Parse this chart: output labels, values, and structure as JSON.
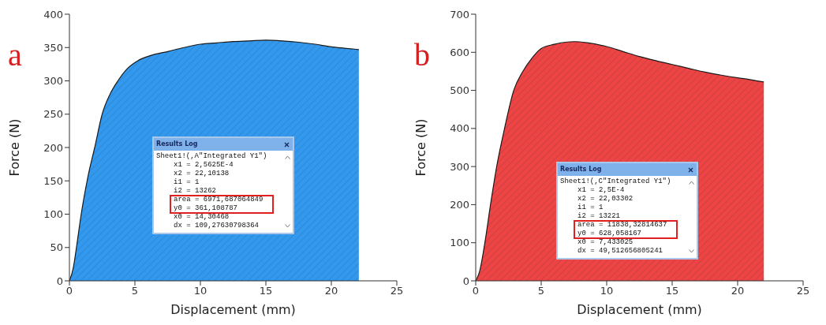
{
  "chart_data": [
    {
      "type": "area",
      "title": "a",
      "xlabel": "Displacement (mm)",
      "ylabel": "Force (N)",
      "xlim": [
        0,
        25
      ],
      "xticks": [
        0,
        5,
        10,
        15,
        20,
        25
      ],
      "ylim": [
        0,
        400
      ],
      "yticks": [
        0,
        50,
        100,
        150,
        200,
        250,
        300,
        350,
        400
      ],
      "grid": false,
      "legend": false,
      "x": [
        0,
        0.3,
        0.5,
        0.9,
        1.4,
        1.93,
        2.5,
        3.1,
        3.7,
        4.4,
        5.2,
        6.2,
        7.5,
        8.75,
        10,
        11.25,
        12.5,
        13.75,
        15,
        16.25,
        17.5,
        18.75,
        20,
        21,
        22.1
      ],
      "series": [
        {
          "color": "#3399ee",
          "values": [
            0,
            20,
            45,
            100,
            155,
            200,
            250,
            280,
            300,
            318,
            330,
            338,
            344,
            350,
            355,
            357,
            359,
            360,
            361,
            360,
            358,
            355,
            351,
            349,
            347
          ]
        }
      ],
      "annotations": [
        "Results Log",
        "Sheet1!(,A\"Integrated Y1\")",
        "x1 = 2,5625E-4",
        "x2 = 22,10138",
        "i1 = 1",
        "i2 = 13262",
        "area = 6971,687064849",
        "y0 = 361,108787",
        "x0 = 14,30468",
        "dx = 109,27630798364"
      ]
    },
    {
      "type": "area",
      "title": "b",
      "xlabel": "Displacement (mm)",
      "ylabel": "Force (N)",
      "xlim": [
        0,
        25
      ],
      "xticks": [
        0,
        5,
        10,
        15,
        20,
        25
      ],
      "ylim": [
        0,
        700
      ],
      "yticks": [
        0,
        100,
        200,
        300,
        400,
        500,
        600,
        700
      ],
      "grid": false,
      "legend": false,
      "x": [
        0,
        0.3,
        0.7,
        1.13,
        1.6,
        2.2,
        2.9,
        3.6,
        4.3,
        5,
        6,
        7,
        7.5,
        8.5,
        10,
        11.25,
        12.5,
        13.75,
        15,
        16.25,
        17.5,
        18.75,
        20,
        21,
        22
      ],
      "series": [
        {
          "color": "#ee4444",
          "values": [
            0,
            25,
            100,
            200,
            300,
            400,
            500,
            550,
            585,
            610,
            621,
            627,
            628,
            625,
            615,
            602,
            589,
            578,
            568,
            558,
            548,
            540,
            533,
            528,
            522
          ]
        }
      ],
      "annotations": [
        "Results Log",
        "Sheet1!(,C\"Integrated Y1\")",
        "x1 = 2,5E-4",
        "x2 = 22,03302",
        "i1 = 1",
        "i2 = 13221",
        "area = 11838,32814637",
        "y0 = 628,058167",
        "x0 = 7,433025",
        "dx = 49,512656805241"
      ]
    }
  ]
}
